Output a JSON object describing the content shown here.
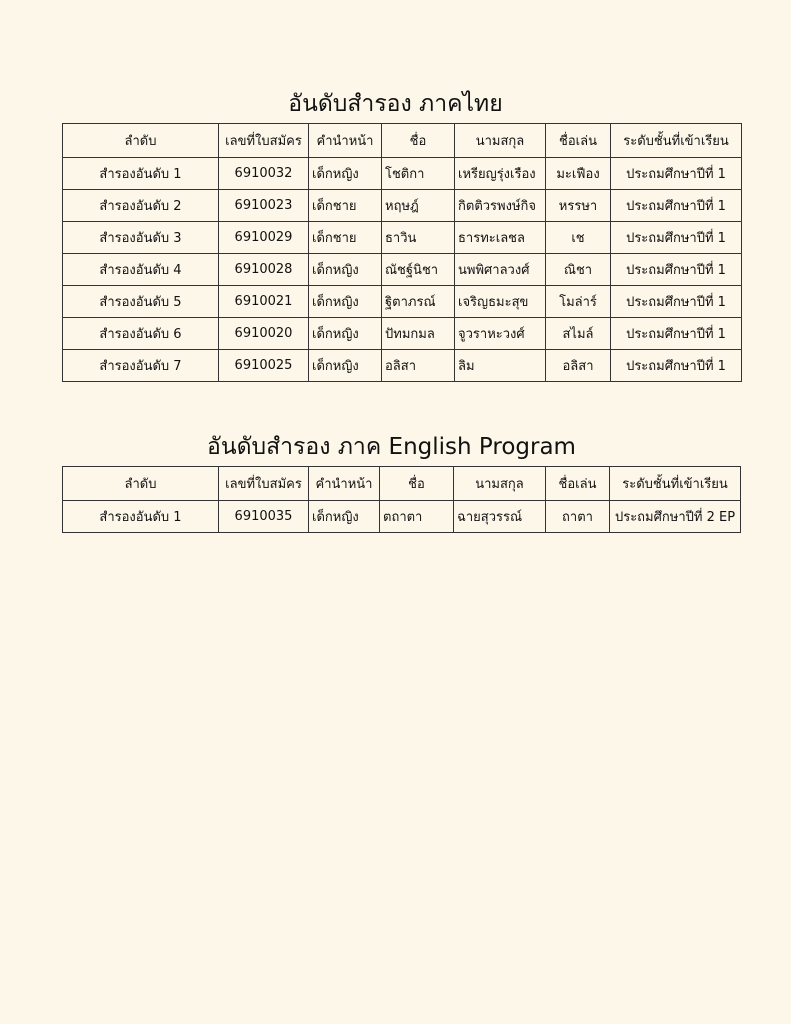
{
  "sections": [
    {
      "title": "อันดับสำรอง ภาคไทย",
      "headers": [
        "ลำดับ",
        "เลขที่ใบสมัคร",
        "คำนำหน้า",
        "ชื่อ",
        "นามสกุล",
        "ชื่อเล่น",
        "ระดับชั้นที่เข้าเรียน"
      ],
      "rows": [
        [
          "สำรองอันดับ 1",
          "6910032",
          "เด็กหญิง",
          "โชติกา",
          "เหรียญรุ่งเรือง",
          "มะเฟือง",
          "ประถมศึกษาปีที่ 1"
        ],
        [
          "สำรองอันดับ 2",
          "6910023",
          "เด็กชาย",
          "หฤษฎ์",
          "กิตติวรพงษ์กิจ",
          "หรรษา",
          "ประถมศึกษาปีที่ 1"
        ],
        [
          "สำรองอันดับ 3",
          "6910029",
          "เด็กชาย",
          "ธาวิน",
          "ธารทะเลชล",
          "เช",
          "ประถมศึกษาปีที่ 1"
        ],
        [
          "สำรองอันดับ 4",
          "6910028",
          "เด็กหญิง",
          "ณัชฐ์นิชา",
          "นพพิศาลวงศ์",
          "ณิชา",
          "ประถมศึกษาปีที่ 1"
        ],
        [
          "สำรองอันดับ 5",
          "6910021",
          "เด็กหญิง",
          "ฐิตาภรณ์",
          "เจริญธมะสุข",
          "โมล่าร์",
          "ประถมศึกษาปีที่ 1"
        ],
        [
          "สำรองอันดับ 6",
          "6910020",
          "เด็กหญิง",
          "ปัทมกมล",
          "จูวราหะวงศ์",
          "สไมล์",
          "ประถมศึกษาปีที่ 1"
        ],
        [
          "สำรองอันดับ 7",
          "6910025",
          "เด็กหญิง",
          "อลิสา",
          "ลิม",
          "อลิสา",
          "ประถมศึกษาปีที่ 1"
        ]
      ]
    },
    {
      "title": "อันดับสำรอง ภาค English Program",
      "headers": [
        "ลำดับ",
        "เลขที่ใบสมัคร",
        "คำนำหน้า",
        "ชื่อ",
        "นามสกุล",
        "ชื่อเล่น",
        "ระดับชั้นที่เข้าเรียน"
      ],
      "rows": [
        [
          "สำรองอันดับ 1",
          "6910035",
          "เด็กหญิง",
          "ตถาตา",
          "ฉายสุวรรณ์",
          "ถาตา",
          "ประถมศึกษาปีที่ 2 EP"
        ]
      ]
    }
  ]
}
